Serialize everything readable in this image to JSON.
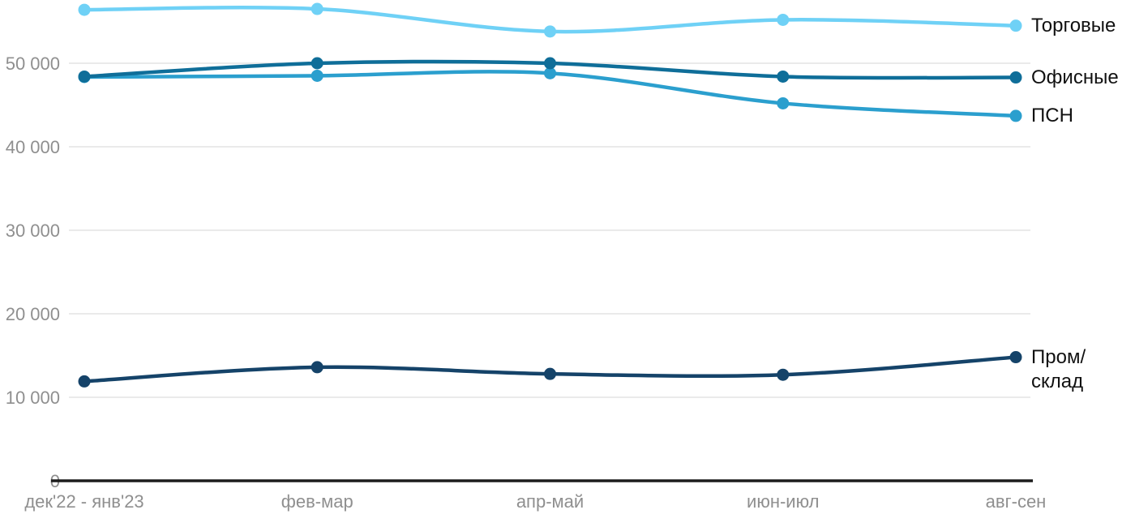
{
  "chart_data": {
    "type": "line",
    "title": "",
    "categories": [
      "дек'22 - янв'23",
      "фев-мар",
      "апр-май",
      "июн-июл",
      "авг-сен"
    ],
    "series": [
      {
        "name": "Торговые",
        "label_display": "Торговые",
        "color": "#6fd1f6",
        "values": [
          56400,
          56500,
          53800,
          55200,
          54500
        ]
      },
      {
        "name": "Офисные",
        "label_display": "Офисные",
        "color": "#0f6e99",
        "values": [
          48400,
          50000,
          50000,
          48400,
          48300
        ]
      },
      {
        "name": "ПСН",
        "label_display": "ПСН",
        "color": "#2b9fce",
        "values": [
          48350,
          48500,
          48800,
          45200,
          43700
        ]
      },
      {
        "name": "Пром/склад",
        "label_display": "Пром/\nсклад",
        "color": "#154369",
        "values": [
          11900,
          13600,
          12800,
          12700,
          14800
        ]
      }
    ],
    "y_axis": {
      "tick_labels": [
        "0",
        "10 000",
        "20 000",
        "30 000",
        "40 000",
        "50 000"
      ],
      "tick_values": [
        0,
        10000,
        20000,
        30000,
        40000,
        50000
      ],
      "min": 0,
      "max": 57000
    },
    "grid": "horizontal",
    "legend_position": "right-of-line-ends",
    "marker": "filled-circle"
  }
}
